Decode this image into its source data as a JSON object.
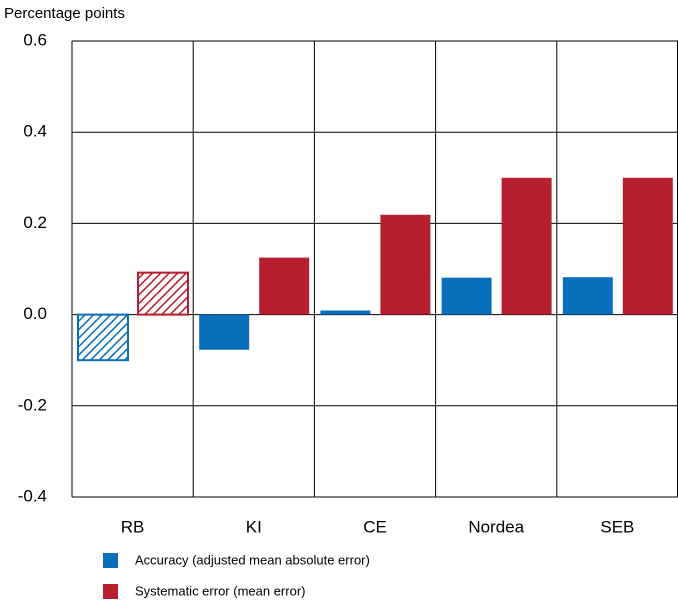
{
  "chart_data": {
    "type": "bar",
    "y_label": "Percentage points",
    "categories": [
      "RB",
      "KI",
      "CE",
      "Nordea",
      "SEB"
    ],
    "hatched": [
      true,
      false,
      false,
      false,
      false
    ],
    "series": [
      {
        "name": "Accuracy (adjusted mean absolute error)",
        "color": "#0a6fba",
        "values": [
          -0.1,
          -0.077,
          0.009,
          0.081,
          0.082
        ]
      },
      {
        "name": "Systematic error (mean error)",
        "color": "#b51f2e",
        "values": [
          0.092,
          0.125,
          0.219,
          0.3,
          0.3
        ]
      }
    ],
    "ylim": [
      -0.4,
      0.6
    ],
    "yticks": [
      {
        "value": -0.4,
        "label": "-0.4"
      },
      {
        "value": -0.2,
        "label": "-0.2"
      },
      {
        "value": 0,
        "label": "0.0"
      },
      {
        "value": 0.2,
        "label": "0.2"
      },
      {
        "value": 0.4,
        "label": "0.4"
      },
      {
        "value": 0.6,
        "label": "0.6"
      }
    ],
    "grid": true
  }
}
